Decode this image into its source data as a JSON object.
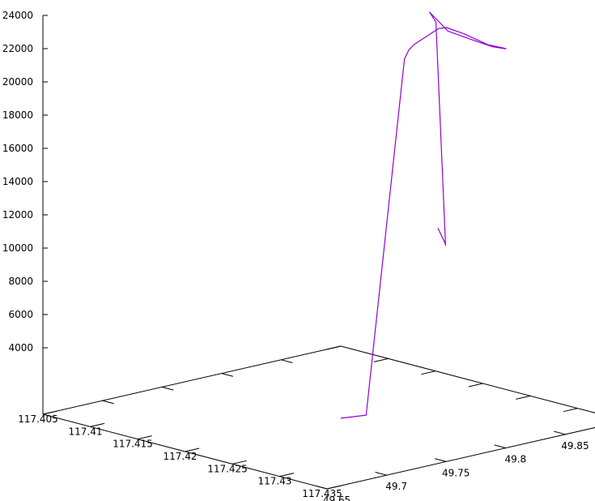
{
  "chart_data": {
    "type": "line3d",
    "title": "",
    "xlabel": "",
    "ylabel": "",
    "zlabel": "",
    "grid": false,
    "legend": "none",
    "series_color": "#9400d3",
    "axis_color": "#000000",
    "x_ticks": [
      "117.405",
      "117.41",
      "117.415",
      "117.42",
      "117.425",
      "117.43",
      "117.435"
    ],
    "y_ticks": [
      "49.65",
      "49.7",
      "49.75",
      "49.8",
      "49.85"
    ],
    "z_ticks": [
      "4000",
      "6000",
      "8000",
      "10000",
      "12000",
      "14000",
      "16000",
      "18000",
      "20000",
      "22000",
      "24000"
    ],
    "xlim": [
      117.405,
      117.435
    ],
    "ylim": [
      49.65,
      49.9
    ],
    "zlim": [
      0,
      24000
    ],
    "series": [
      {
        "points": [
          [
            117.4255,
            49.737,
            1400
          ],
          [
            117.4268,
            49.748,
            1600
          ],
          [
            117.4243,
            49.8,
            21800
          ],
          [
            117.424,
            49.806,
            22200
          ],
          [
            117.4238,
            49.812,
            22400
          ],
          [
            117.4235,
            49.835,
            22950
          ],
          [
            117.4237,
            49.84,
            22950
          ],
          [
            117.4243,
            49.85,
            22500
          ],
          [
            117.4253,
            49.862,
            21800
          ],
          [
            117.4262,
            49.869,
            21600
          ],
          [
            117.4262,
            49.87,
            21550
          ],
          [
            117.4258,
            49.862,
            21750
          ],
          [
            117.425,
            49.852,
            22200
          ],
          [
            117.424,
            49.839,
            22800
          ],
          [
            117.4233,
            49.829,
            24000
          ],
          [
            117.4236,
            49.832,
            23400
          ],
          [
            117.426,
            49.821,
            10500
          ],
          [
            117.4262,
            49.819,
            10700
          ],
          [
            117.4262,
            49.813,
            11700
          ]
        ]
      }
    ]
  }
}
